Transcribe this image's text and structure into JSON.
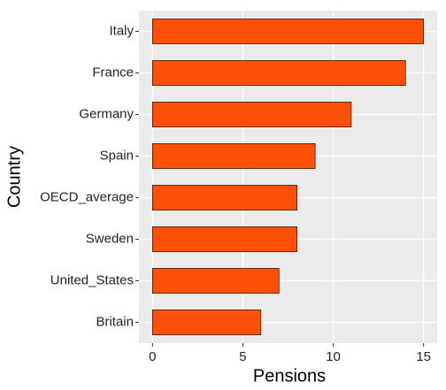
{
  "chart_data": {
    "type": "bar",
    "orientation": "horizontal",
    "x_label": "Pensions",
    "y_label": "Country",
    "categories": [
      "Italy",
      "France",
      "Germany",
      "Spain",
      "OECD_average",
      "Sweden",
      "United_States",
      "Britain"
    ],
    "values": [
      15,
      14,
      11,
      9,
      8,
      8,
      7,
      6
    ],
    "color": "#ff5008",
    "xlim": [
      -0.75,
      15.75
    ],
    "xticks": [
      0,
      5,
      10,
      15
    ],
    "grid": true
  }
}
